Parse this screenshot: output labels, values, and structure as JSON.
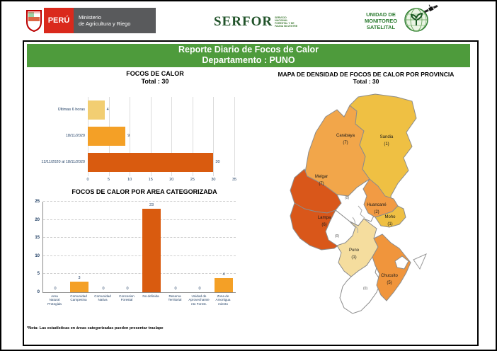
{
  "header": {
    "peru_label": "PERÚ",
    "ministry_lines": [
      "Ministerio",
      "de Agricultura y Riego"
    ],
    "serfor": "SERFOR",
    "serfor_tagline": [
      "SERVICIO",
      "NACIONAL",
      "FORESTAL Y DE",
      "FAUNA SILVESTRE"
    ],
    "unit_lines": [
      "UNIDAD DE",
      "MONITOREO",
      "SATELITAL"
    ]
  },
  "title_bar": {
    "line1": "Reporte Diario de Focos de Calor",
    "line2": "Departamento : PUNO"
  },
  "chart1": {
    "type": "bar-horizontal",
    "title": "FOCOS DE CALOR",
    "total": "Total : 30",
    "x_ticks": [
      0,
      5,
      10,
      15,
      20,
      25,
      30,
      35
    ],
    "x_max": 35,
    "rows": [
      {
        "label": "Últimas 6 horas",
        "value": 4,
        "color": "#F2CE72"
      },
      {
        "label": "18/11/2020",
        "value": 9,
        "color": "#F4A026"
      },
      {
        "label": "12/11/2020 al 18/11/2020",
        "value": 30,
        "color": "#D95B0F"
      }
    ]
  },
  "chart2": {
    "type": "bar",
    "title": "FOCOS DE CALOR POR AREA CATEGORIZADA",
    "y_ticks": [
      0,
      5,
      10,
      15,
      20,
      25
    ],
    "y_max": 25,
    "categories": [
      {
        "label_lines": [
          "Area",
          "Natural",
          "Protegida"
        ],
        "value": 0,
        "color": "#F4A026"
      },
      {
        "label_lines": [
          "Comunidad",
          "Campesina"
        ],
        "value": 3,
        "color": "#F4A026"
      },
      {
        "label_lines": [
          "Comunidad",
          "Nativa"
        ],
        "value": 0,
        "color": "#F4A026"
      },
      {
        "label_lines": [
          "Concesion",
          "Forestal"
        ],
        "value": 0,
        "color": "#F4A026"
      },
      {
        "label_lines": [
          "No definida"
        ],
        "value": 23,
        "color": "#D95B0F"
      },
      {
        "label_lines": [
          "Reserva",
          "Territorial"
        ],
        "value": 0,
        "color": "#F4A026"
      },
      {
        "label_lines": [
          "Unidad de",
          "Aprovechamie",
          "nto Forest."
        ],
        "value": 0,
        "color": "#F4A026"
      },
      {
        "label_lines": [
          "Zona de",
          "Amortigua",
          "miento"
        ],
        "value": 4,
        "color": "#F4A026"
      }
    ]
  },
  "map": {
    "title": "MAPA DE DENSIDAD DE FOCOS DE CALOR POR PROVINCIA",
    "total": "Total : 30",
    "provinces": [
      {
        "id": "carabaya",
        "name": "Carabaya",
        "value": 7,
        "label_lines": [
          "Carabaya",
          "(7)"
        ],
        "color": "#F2A64A"
      },
      {
        "id": "sandia",
        "name": "Sandia",
        "value": 1,
        "label_lines": [
          "Sandia",
          "(1)"
        ],
        "color": "#EFC043"
      },
      {
        "id": "melgar",
        "name": "Melgar",
        "value": 7,
        "label_lines": [
          "Melgar",
          "(7)"
        ],
        "color": "#D9571A"
      },
      {
        "id": "lampa",
        "name": "Lampa",
        "value": 6,
        "label_lines": [
          "Lampa",
          "(6)"
        ],
        "color": "#D9571A"
      },
      {
        "id": "azangaro",
        "name": "Azángaro",
        "value": 0,
        "label_lines": [
          "(0)"
        ],
        "color": "#FFFFFF"
      },
      {
        "id": "huancane",
        "name": "Huancané",
        "value": 2,
        "label_lines": [
          "Huancané",
          "(2)"
        ],
        "color": "#F29B44"
      },
      {
        "id": "moho",
        "name": "Moho",
        "value": 1,
        "label_lines": [
          "Moho",
          "(1)"
        ],
        "color": "#EFC043"
      },
      {
        "id": "sanroman",
        "name": "San Román",
        "value": 0,
        "label_lines": [
          "(0)"
        ],
        "color": "#FFFFFF"
      },
      {
        "id": "puno",
        "name": "Puno",
        "value": 1,
        "label_lines": [
          "Puno",
          "(1)"
        ],
        "color": "#F5DD9E"
      },
      {
        "id": "collao",
        "name": "El Collao",
        "value": 0,
        "label_lines": [
          "(0)"
        ],
        "color": "#FFFFFF"
      },
      {
        "id": "chucuito",
        "name": "Chucuito",
        "value": 5,
        "label_lines": [
          "Chucuito",
          "(5)"
        ],
        "color": "#F0953C"
      },
      {
        "id": "yunguyo",
        "name": "Yunguyo",
        "value": 0,
        "label_lines": [],
        "color": "#FFFFFF"
      }
    ]
  },
  "footnote": "*Nota: Las estadísticas en áreas categorizadas pueden presentar traslape"
}
